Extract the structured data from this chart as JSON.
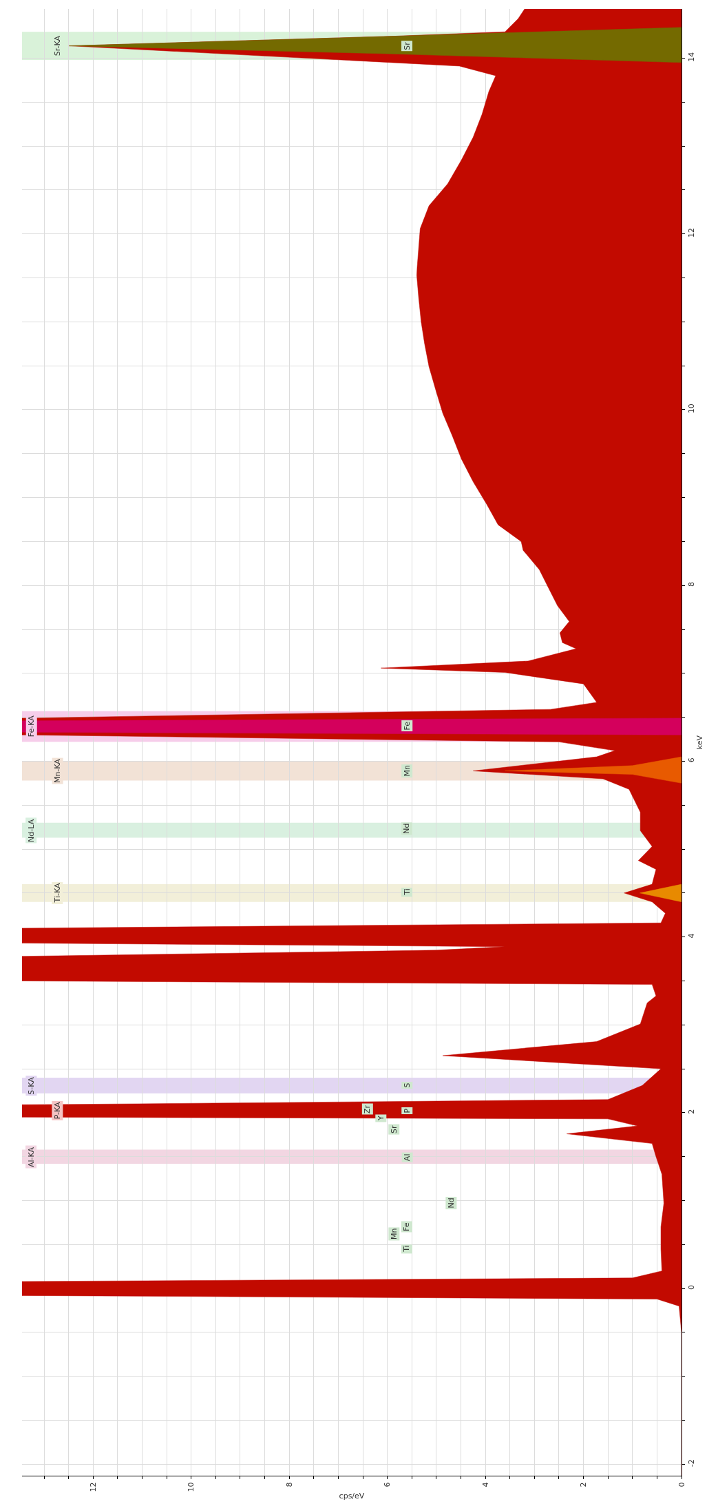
{
  "chart_data": {
    "type": "area",
    "orientation": "horizontal",
    "xlabel": "cps/eV",
    "ylabel": "keV",
    "series": [
      {
        "color": "#c20a00",
        "x": [
          -2.13,
          -0.5,
          -0.2,
          -0.12,
          -0.08,
          0.08,
          0.12,
          0.2,
          0.45,
          0.7,
          0.97,
          1.3,
          1.5,
          1.65,
          1.76,
          1.85,
          1.93,
          1.95,
          2.09,
          2.15,
          2.31,
          2.5,
          2.65,
          2.81,
          3.01,
          3.25,
          3.33,
          3.46,
          3.5,
          3.78,
          3.85,
          3.89,
          3.93,
          4.1,
          4.16,
          4.27,
          4.4,
          4.5,
          4.6,
          4.77,
          4.87,
          5.03,
          5.21,
          5.42,
          5.68,
          5.8,
          5.89,
          6.05,
          6.12,
          6.22,
          6.3,
          6.49,
          6.59,
          6.67,
          6.88,
          7.01,
          7.06,
          7.14,
          7.28,
          7.35,
          7.46,
          7.59,
          7.77,
          7.98,
          8.18,
          8.4,
          8.5,
          8.69,
          8.92,
          9.18,
          9.44,
          9.71,
          9.96,
          10.22,
          10.49,
          10.75,
          11.0,
          11.27,
          11.53,
          11.63,
          12.06,
          12.32,
          12.57,
          12.84,
          13.1,
          13.36,
          13.62,
          13.8,
          13.91,
          14.14,
          14.25,
          14.3,
          14.45,
          14.56
        ],
        "values": [
          0,
          0,
          0.05,
          0.5,
          13.45,
          13.45,
          1.0,
          0.4,
          0.42,
          0.42,
          0.36,
          0.4,
          0.52,
          0.6,
          2.34,
          0.9,
          1.5,
          13.45,
          13.45,
          1.5,
          0.8,
          0.42,
          4.87,
          1.73,
          0.84,
          0.7,
          0.52,
          0.6,
          13.45,
          13.45,
          5.0,
          3.6,
          13.45,
          13.45,
          0.42,
          0.33,
          0.6,
          1.17,
          0.6,
          0.52,
          0.88,
          0.6,
          0.84,
          0.84,
          1.07,
          1.6,
          4.25,
          1.73,
          1.36,
          2.5,
          13.45,
          13.45,
          2.67,
          1.73,
          2.0,
          3.6,
          6.13,
          3.13,
          2.15,
          2.43,
          2.48,
          2.29,
          2.53,
          2.72,
          2.9,
          3.23,
          3.27,
          3.74,
          3.97,
          4.25,
          4.49,
          4.68,
          4.87,
          5.01,
          5.15,
          5.24,
          5.31,
          5.36,
          5.4,
          5.39,
          5.33,
          5.15,
          4.77,
          4.49,
          4.25,
          4.07,
          3.93,
          3.79,
          4.53,
          12.49,
          5.85,
          3.6,
          3.33,
          3.2
        ]
      },
      {
        "color": "#746a00",
        "x": [
          13.95,
          14.05,
          14.14,
          14.25,
          14.35
        ],
        "values": [
          0,
          6.0,
          12.49,
          5.85,
          0
        ]
      },
      {
        "color": "#d4005c",
        "x": [
          6.3,
          6.33,
          6.46,
          6.49
        ],
        "values": [
          0,
          13.45,
          13.45,
          0
        ]
      },
      {
        "color": "#e85a00",
        "x": [
          5.75,
          5.85,
          5.89,
          5.95,
          6.05
        ],
        "values": [
          0,
          1.0,
          3.6,
          1.0,
          0
        ]
      },
      {
        "color": "#e88a00",
        "x": [
          4.4,
          4.5,
          4.6
        ],
        "values": [
          0,
          0.85,
          0
        ]
      }
    ],
    "ylim": [
      -2.13,
      14.56
    ],
    "yticks": [
      -2,
      {
        "value": -1.5,
        "label": null
      },
      {
        "value": -1,
        "label": null
      },
      {
        "value": -0.5,
        "label": null
      },
      0,
      {
        "value": 0.5,
        "label": null
      },
      {
        "value": 1,
        "label": null
      },
      {
        "value": 1.5,
        "label": null
      },
      2,
      {
        "value": 2.5,
        "label": null
      },
      {
        "value": 3,
        "label": null
      },
      {
        "value": 3.5,
        "label": null
      },
      4,
      {
        "value": 4.5,
        "label": null
      },
      {
        "value": 5,
        "label": null
      },
      {
        "value": 5.5,
        "label": null
      },
      6,
      {
        "value": 6.5,
        "label": null
      },
      {
        "value": 7,
        "label": null
      },
      {
        "value": 7.5,
        "label": null
      },
      8,
      {
        "value": 8.5,
        "label": null
      },
      {
        "value": 9,
        "label": null
      },
      {
        "value": 9.5,
        "label": null
      },
      10,
      {
        "value": 10.5,
        "label": null
      },
      {
        "value": 11,
        "label": null
      },
      {
        "value": 11.5,
        "label": null
      },
      12,
      {
        "value": 12.5,
        "label": null
      },
      {
        "value": 13,
        "label": null
      },
      {
        "value": 13.5,
        "label": null
      },
      14
    ],
    "xlim": [
      13.45,
      0
    ],
    "xticks": [
      0,
      {
        "value": 0.5,
        "label": null
      },
      {
        "value": 1,
        "label": null
      },
      {
        "value": 1.5,
        "label": null
      },
      2,
      {
        "value": 2.5,
        "label": null
      },
      {
        "value": 3,
        "label": null
      },
      {
        "value": 3.5,
        "label": null
      },
      4,
      {
        "value": 4.5,
        "label": null
      },
      {
        "value": 5,
        "label": null
      },
      {
        "value": 5.5,
        "label": null
      },
      6,
      {
        "value": 6.5,
        "label": null
      },
      {
        "value": 7,
        "label": null
      },
      {
        "value": 7.5,
        "label": null
      },
      8,
      {
        "value": 8.5,
        "label": null
      },
      {
        "value": 9,
        "label": null
      },
      {
        "value": 9.5,
        "label": null
      },
      10,
      {
        "value": 10.5,
        "label": null
      },
      {
        "value": 11,
        "label": null
      },
      {
        "value": 11.5,
        "label": null
      },
      12,
      {
        "value": 12.5,
        "label": null
      },
      {
        "value": 13,
        "label": null
      }
    ],
    "grid": true,
    "bands": [
      {
        "axis": "y",
        "from": 1.42,
        "to": 1.58,
        "label": "Al-KA",
        "color": "#f2d6e2"
      },
      {
        "axis": "y",
        "from": 1.95,
        "to": 2.1,
        "label": "P-KA",
        "color": "#f5c4c4"
      },
      {
        "axis": "y",
        "from": 2.22,
        "to": 2.4,
        "label": "S-KA",
        "color": "#e2d6f2"
      },
      {
        "axis": "y",
        "from": 4.4,
        "to": 4.6,
        "label": "Ti-KA",
        "color": "#f2efd9"
      },
      {
        "axis": "y",
        "from": 5.13,
        "to": 5.3,
        "label": "Nd-LA",
        "color": "#d9f0e0"
      },
      {
        "axis": "y",
        "from": 5.78,
        "to": 6.0,
        "label": "Mn-KA",
        "color": "#f2e2d6"
      },
      {
        "axis": "y",
        "from": 6.22,
        "to": 6.57,
        "label": "Fe-KA",
        "color": "#f6cdea"
      },
      {
        "axis": "y",
        "from": 13.98,
        "to": 14.3,
        "label": "Sr-KA",
        "color": "#d9f2d9"
      }
    ],
    "annotations": [
      {
        "text": "Ti",
        "y": 0.45,
        "x": 5.6
      },
      {
        "text": "Mn",
        "y": 0.62,
        "x": 5.87
      },
      {
        "text": "Fe",
        "y": 0.7,
        "x": 5.6
      },
      {
        "text": "Nd",
        "y": 0.97,
        "x": 4.7
      },
      {
        "text": "Al",
        "y": 1.49,
        "x": 5.6
      },
      {
        "text": "Sr",
        "y": 1.81,
        "x": 5.87
      },
      {
        "text": "Y",
        "y": 1.94,
        "x": 6.13
      },
      {
        "text": "Zr",
        "y": 2.04,
        "x": 6.4
      },
      {
        "text": "P",
        "y": 2.02,
        "x": 5.6
      },
      {
        "text": "S",
        "y": 2.31,
        "x": 5.6
      },
      {
        "text": "Ti",
        "y": 4.51,
        "x": 5.6
      },
      {
        "text": "Nd",
        "y": 5.23,
        "x": 5.6
      },
      {
        "text": "Mn",
        "y": 5.89,
        "x": 5.6
      },
      {
        "text": "Fe",
        "y": 6.4,
        "x": 5.6
      },
      {
        "text": "Sr",
        "y": 14.14,
        "x": 5.6
      }
    ]
  }
}
